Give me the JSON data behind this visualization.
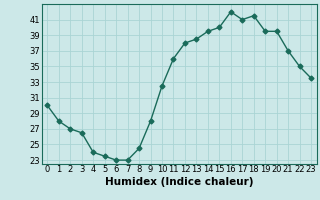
{
  "x": [
    0,
    1,
    2,
    3,
    4,
    5,
    6,
    7,
    8,
    9,
    10,
    11,
    12,
    13,
    14,
    15,
    16,
    17,
    18,
    19,
    20,
    21,
    22,
    23
  ],
  "y": [
    30,
    28,
    27,
    26.5,
    24,
    23.5,
    23,
    23,
    24.5,
    28,
    32.5,
    36,
    38,
    38.5,
    39.5,
    40,
    42,
    41,
    41.5,
    39.5,
    39.5,
    37,
    35,
    33.5
  ],
  "line_color": "#1a6b5a",
  "marker": "D",
  "marker_size": 2.5,
  "bg_color": "#cce8e8",
  "grid_color": "#aad4d4",
  "xlabel": "Humidex (Indice chaleur)",
  "ylim": [
    22.5,
    43
  ],
  "xlim": [
    -0.5,
    23.5
  ],
  "yticks": [
    23,
    25,
    27,
    29,
    31,
    33,
    35,
    37,
    39,
    41
  ],
  "xtick_labels": [
    "0",
    "1",
    "2",
    "3",
    "4",
    "5",
    "6",
    "7",
    "8",
    "9",
    "10",
    "11",
    "12",
    "13",
    "14",
    "15",
    "16",
    "17",
    "18",
    "19",
    "20",
    "21",
    "22",
    "23"
  ],
  "xlabel_fontsize": 7.5,
  "tick_fontsize": 6
}
